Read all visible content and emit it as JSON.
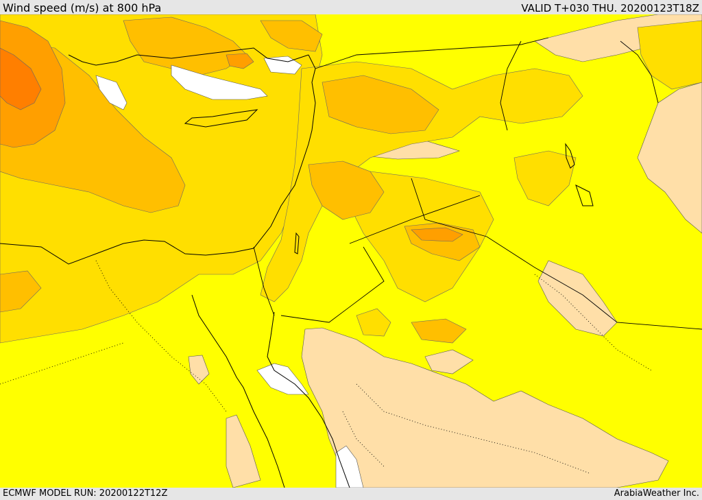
{
  "header": {
    "title": "Wind speed (m/s) at 800 hPa",
    "valid": "VALID T+030 THU. 20200123T18Z"
  },
  "footer": {
    "model_run": "ECMWF MODEL RUN: 20200122T12Z",
    "credit": "ArabiaWeather Inc."
  },
  "map": {
    "field": "wind speed at 800 hPa",
    "colors": {
      "calm": "#ffffff",
      "light": "#ffdfa8",
      "moderate": "#ffff00",
      "fresh": "#ffdf00",
      "strong": "#ffbf00",
      "very_strong": "#ff9f00",
      "max": "#ff7f00",
      "coastline": "#000000",
      "border": "#000000"
    }
  }
}
